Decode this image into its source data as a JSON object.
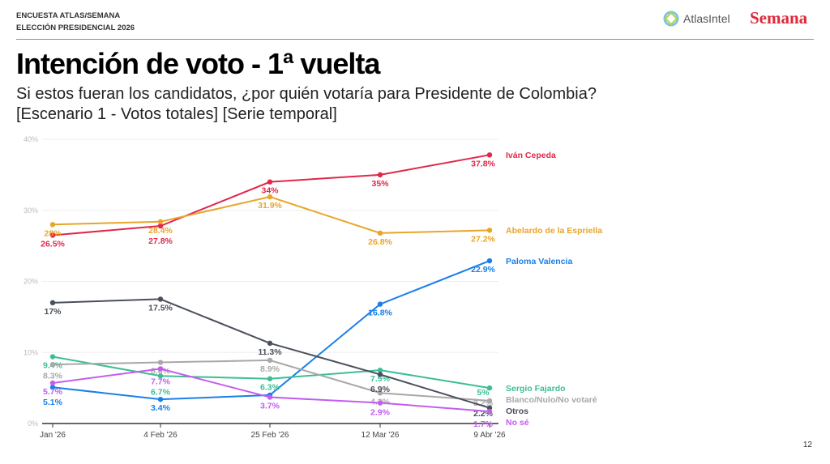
{
  "header": {
    "kicker_line1": "ENCUESTA ATLAS/SEMANA",
    "kicker_line2": "ELECCIÓN PRESIDENCIAL 2026",
    "brand1": "AtlasIntel",
    "brand2": "Semana"
  },
  "title": "Intención de voto - 1ª vuelta",
  "subtitle_line1": "Si estos fueran los candidatos, ¿por quién votaría para Presidente de Colombia?",
  "subtitle_line2": "[Escenario 1 - Votos totales] [Serie temporal]",
  "page_number": "12",
  "chart_data": {
    "type": "line",
    "categories": [
      "Jan '26",
      "4 Feb '26",
      "25 Feb '26",
      "12 Mar '26",
      "9 Abr '26"
    ],
    "ylim": [
      0,
      40
    ],
    "yticks": [
      "0%",
      "10%",
      "20%",
      "30%",
      "40%"
    ],
    "grid": true,
    "legend": "right, end-of-line labels",
    "series": [
      {
        "name": "Iván Cepeda",
        "color": "#e0284a",
        "values": [
          26.5,
          27.8,
          34,
          35,
          37.8
        ],
        "labels": [
          "26.5%",
          "27.8%",
          "34%",
          "35%",
          "37.8%"
        ]
      },
      {
        "name": "Abelardo de la Espriella",
        "color": "#e8a52a",
        "values": [
          28,
          28.4,
          31.9,
          26.8,
          27.2
        ],
        "labels": [
          "28%",
          "28.4%",
          "31.9%",
          "26.8%",
          "27.2%"
        ]
      },
      {
        "name": "Paloma Valencia",
        "color": "#1a7fe8",
        "values": [
          5.1,
          3.4,
          4.0,
          16.8,
          22.9
        ],
        "labels": [
          "5.1%",
          "3.4%",
          "",
          "16.8%",
          "22.9%"
        ]
      },
      {
        "name": "Sergio Fajardo",
        "color": "#3dbd95",
        "values": [
          9.4,
          6.7,
          6.3,
          7.5,
          5
        ],
        "labels": [
          "9.4%",
          "6.7%",
          "6.3%",
          "7.5%",
          "5%"
        ]
      },
      {
        "name": "Blanco/Nulo/No votaré",
        "color": "#a8a8a8",
        "values": [
          8.3,
          8.6,
          8.9,
          4.3,
          3.2
        ],
        "labels": [
          "8.3%",
          "8.6%",
          "8.9%",
          "4.3%",
          "3.2%"
        ]
      },
      {
        "name": "Otros",
        "color": "#4a4f5c",
        "values": [
          17,
          17.5,
          11.3,
          6.9,
          2.2
        ],
        "labels": [
          "17%",
          "17.5%",
          "11.3%",
          "6.9%",
          "2.2%"
        ]
      },
      {
        "name": "No sé",
        "color": "#c45cf0",
        "values": [
          5.7,
          7.7,
          3.7,
          2.9,
          1.7
        ],
        "labels": [
          "5.7%",
          "7.7%",
          "3.7%",
          "2.9%",
          "1.7%"
        ]
      }
    ]
  }
}
